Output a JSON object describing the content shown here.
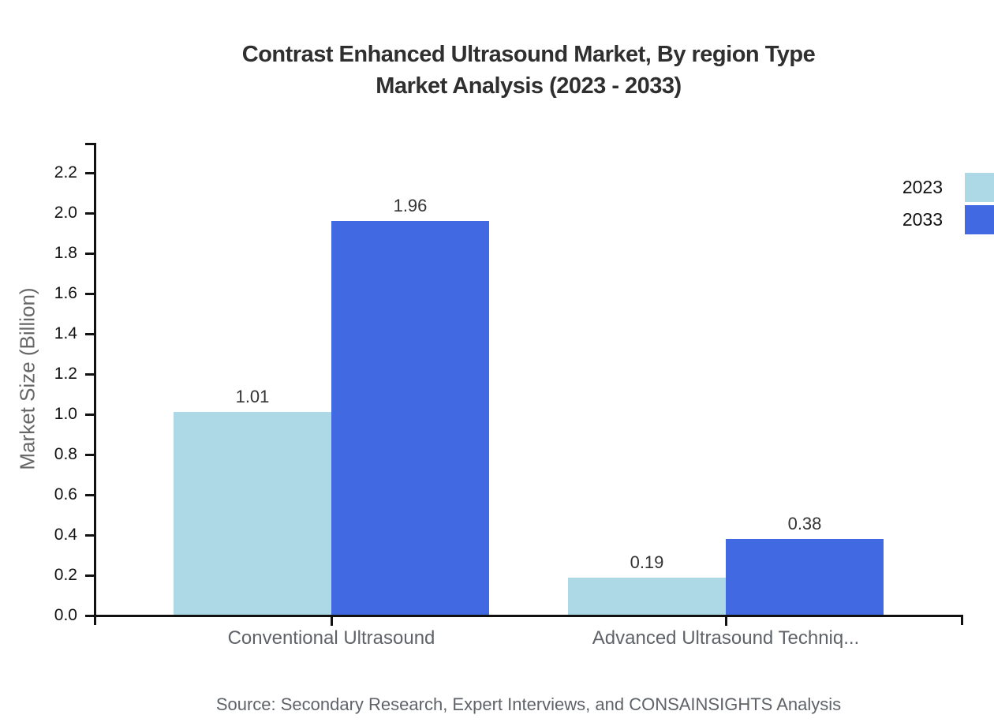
{
  "header": {
    "title_line1": "Contrast Enhanced Ultrasound Market, By region Type",
    "title_line2": "Market Analysis (2023 - 2033)"
  },
  "chart_data": {
    "type": "bar",
    "title": "Contrast Enhanced Ultrasound Market, By region Type Market Analysis (2023 - 2033)",
    "categories": [
      "Conventional Ultrasound",
      "Advanced Ultrasound Techniq..."
    ],
    "series": [
      {
        "name": "2023",
        "color": "#ADD8E6",
        "values": [
          1.01,
          0.19
        ]
      },
      {
        "name": "2033",
        "color": "#4169E1",
        "values": [
          1.96,
          0.38
        ]
      }
    ],
    "xlabel": "",
    "ylabel": "Market Size (Billion)",
    "ylim": [
      0,
      2.35
    ],
    "y_ticks": [
      "0.0",
      "0.2",
      "0.4",
      "0.6",
      "0.8",
      "1.0",
      "1.2",
      "1.4",
      "1.6",
      "1.8",
      "2.0",
      "2.2"
    ],
    "grid": false,
    "legend_position": "top-right",
    "axis_color": "#111111"
  },
  "footer": {
    "source": "Source: Secondary Research, Expert Interviews, and CONSAINSIGHTS Analysis"
  }
}
